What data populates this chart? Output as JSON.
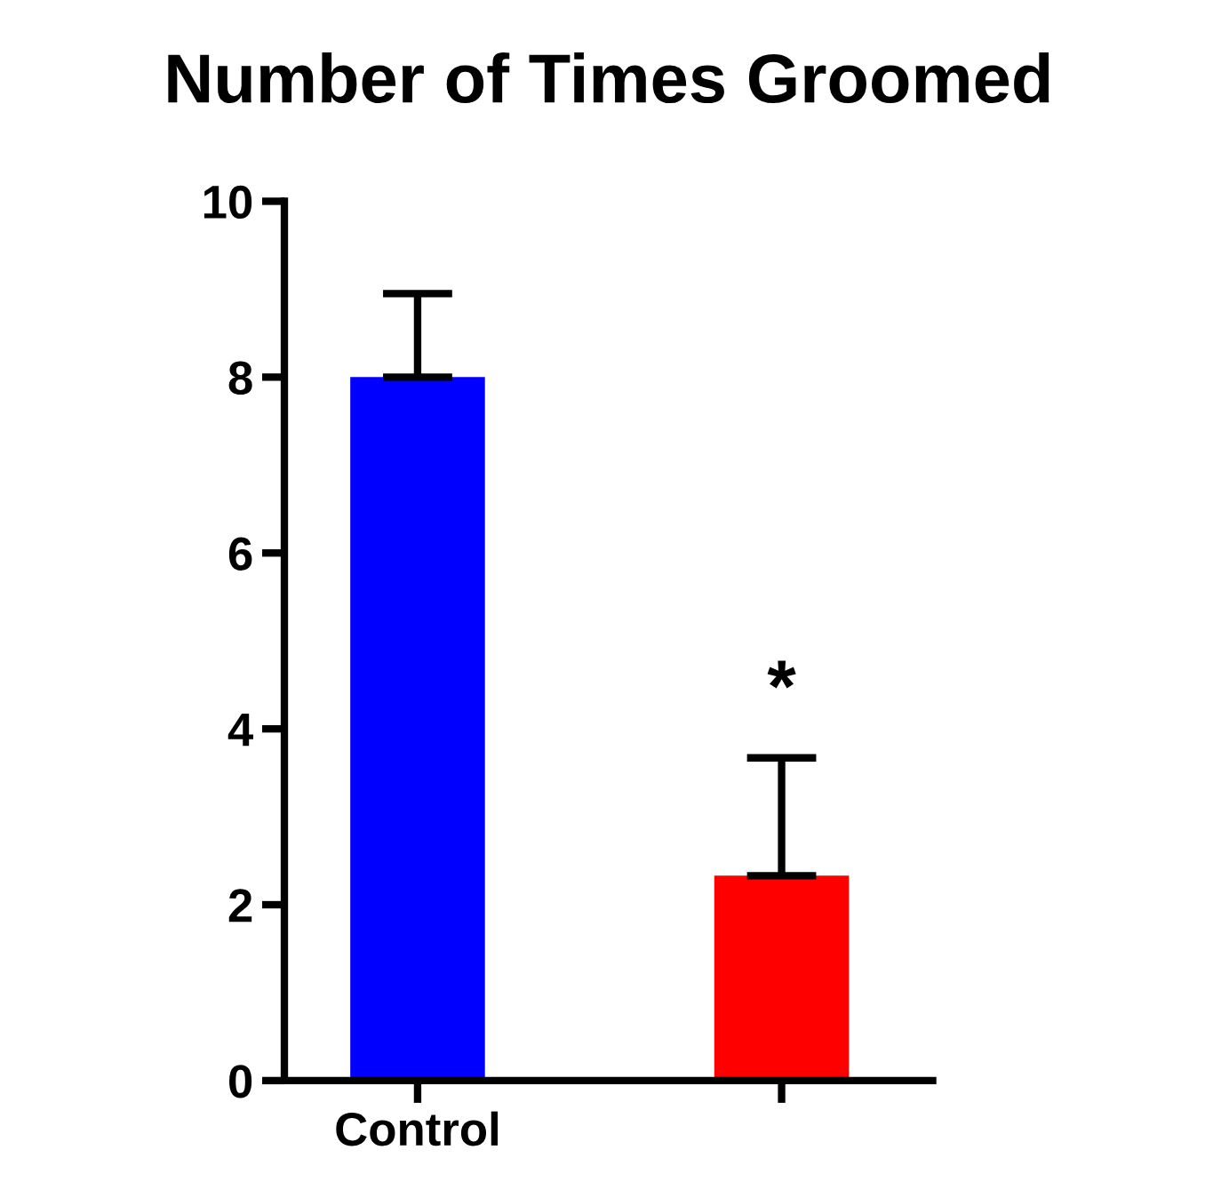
{
  "chart_data": {
    "type": "bar",
    "title": "Number of Times Groomed",
    "categories": [
      "Control",
      null
    ],
    "values": [
      8,
      2.33
    ],
    "colors": [
      "#0000ff",
      "#ff0000"
    ],
    "errors": [
      [
        8,
        8.95
      ],
      [
        2.33,
        3.67
      ]
    ],
    "ylim": [
      0,
      10
    ],
    "yticks": [
      0,
      2,
      4,
      6,
      8,
      10
    ],
    "grid": false,
    "legend": false,
    "annotations": [
      "*"
    ]
  }
}
